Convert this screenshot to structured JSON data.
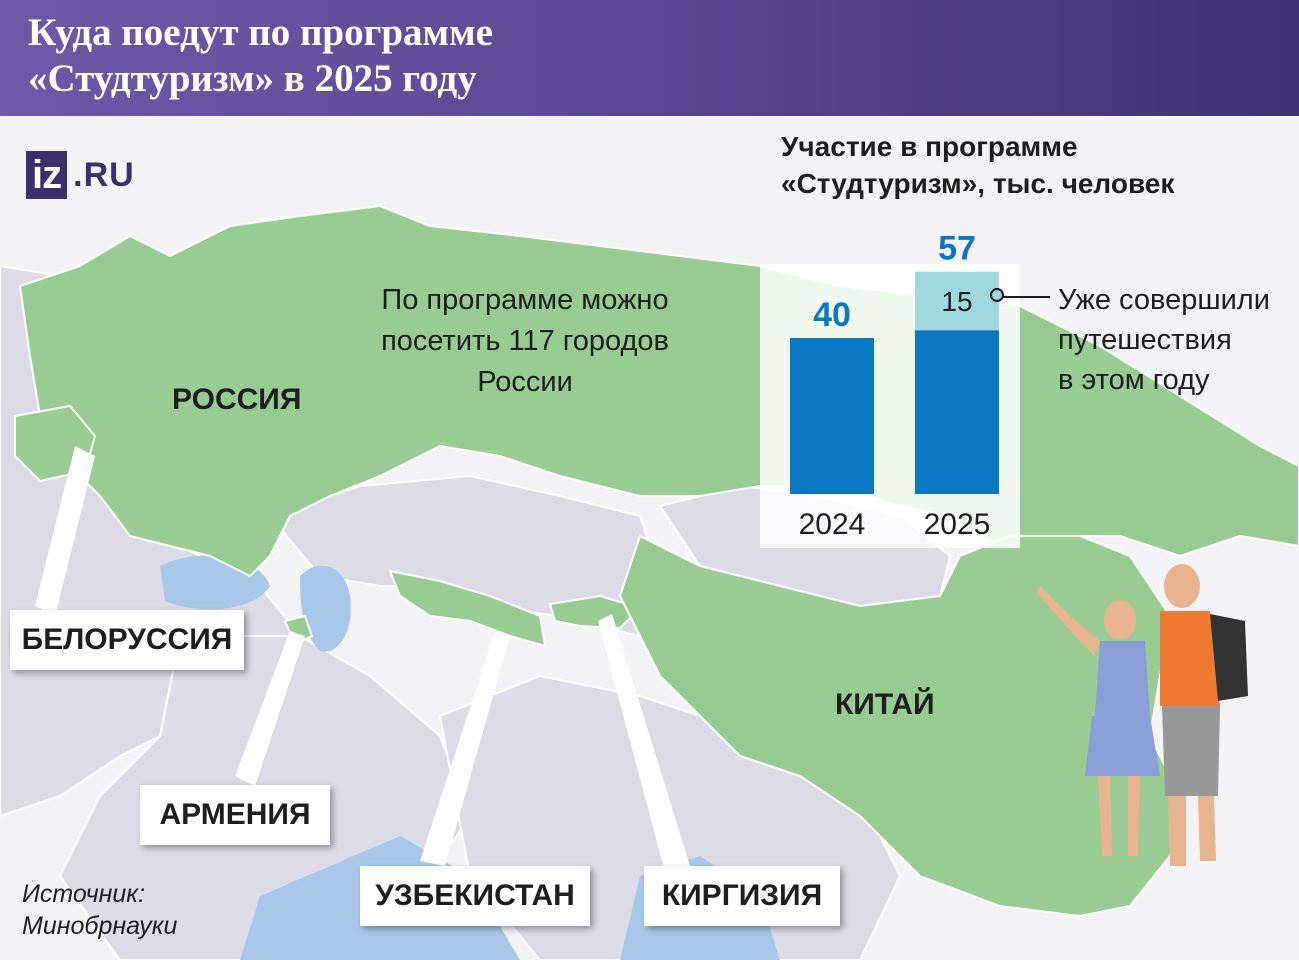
{
  "header": {
    "title_line1": "Куда поедут по программе",
    "title_line2": "«Студтуризм» в 2025 году"
  },
  "logo": {
    "iz": "iz",
    "ru": ".RU"
  },
  "map": {
    "labels": {
      "russia": "РОССИЯ",
      "china": "КИТАЙ"
    },
    "callouts": {
      "belarus": "БЕЛОРУССИЯ",
      "armenia": "АРМЕНИЯ",
      "uzbekistan": "УЗБЕКИСТАН",
      "kyrgyzstan": "КИРГИЗИЯ"
    },
    "note_line1": "По программе можно",
    "note_line2": "посетить 117 городов",
    "note_line3": "России"
  },
  "chart_data": {
    "type": "bar",
    "title_line1": "Участие в программе",
    "title_line2": "«Студтуризм», тыс. человек",
    "categories": [
      "2024",
      "2025"
    ],
    "totals": [
      40,
      57
    ],
    "series": [
      {
        "values": [
          40,
          42
        ],
        "color": "#0a77c2"
      },
      {
        "values": [
          0,
          15
        ],
        "color": "#9fd8df"
      }
    ],
    "segment_label": "15",
    "legend_line1": "Уже совершили",
    "legend_line2": "путешествия",
    "legend_line3": "в этом году",
    "ylim": [
      0,
      60
    ]
  },
  "source": {
    "line1": "Источник:",
    "line2": "Минобрнауки"
  },
  "colors": {
    "russia_green": "#98cc92",
    "land_gray": "#dcdbe6",
    "water": "#a9c8e9",
    "bar_dark": "#0a77c2",
    "bar_light": "#9fd8df",
    "header_purple": "#5a4793"
  }
}
